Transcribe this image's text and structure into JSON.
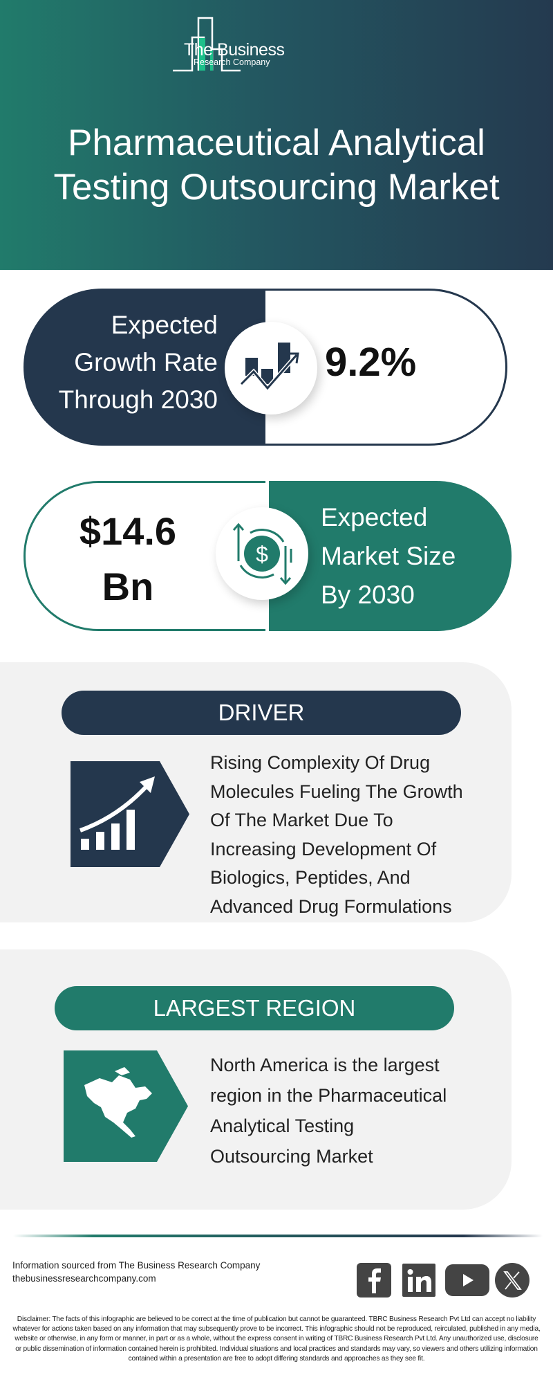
{
  "header": {
    "logo": {
      "line1": "The Business",
      "line2": "Research Company"
    },
    "title_line1": "Pharmaceutical Analytical",
    "title_line2": "Testing Outsourcing Market"
  },
  "growth": {
    "label_lines": [
      "Expected",
      "Growth Rate",
      "Through 2030"
    ],
    "value": "9.2%",
    "icon": "chart-growth-icon"
  },
  "market_size": {
    "value_lines": [
      "$14.6",
      "Bn"
    ],
    "label_lines": [
      "Expected",
      "Market Size",
      "By 2030"
    ],
    "icon": "dollar-exchange-icon"
  },
  "driver": {
    "heading": "DRIVER",
    "text_lines": [
      "Rising Complexity Of Drug",
      "Molecules Fueling The Growth",
      "Of The Market Due To",
      "Increasing Development Of",
      "Biologics, Peptides, And",
      "Advanced Drug Formulations"
    ]
  },
  "region": {
    "heading": "LARGEST REGION",
    "text_lines": [
      "North America is the largest",
      "region in the Pharmaceutical",
      "Analytical Testing",
      "Outsourcing Market"
    ]
  },
  "footer": {
    "source": "Information sourced from The Business Research Company",
    "website": "thebusinessresearchcompany.com",
    "social": [
      "facebook-icon",
      "linkedin-icon",
      "youtube-icon",
      "x-icon"
    ],
    "disclaimer": "Disclaimer: The facts of this infographic are believed to be correct at the time of publication but cannot be guaranteed. TBRC Business Research Pvt Ltd can accept no liability whatever for actions taken based on any information that may subsequently prove to be incorrect. This infographic should not be reproduced, reirculated, published in any media, website or otherwise, in any form or manner, in part or as a whole, without the express consent in writing of TBRC Business Research Pvt Ltd. Any unauthorized use, disclosure or public dissemination of information contained herein is prohibited. Individual situations and local practices and standards may vary, so viewers and others utilizing information contained within a presentation are free to adopt differing standards and approaches as they see fit."
  },
  "colors": {
    "dark_navy": "#24374d",
    "teal": "#217b6b",
    "panel_gray": "#f2f2f2",
    "logo_accent": "#1dbf8a"
  }
}
